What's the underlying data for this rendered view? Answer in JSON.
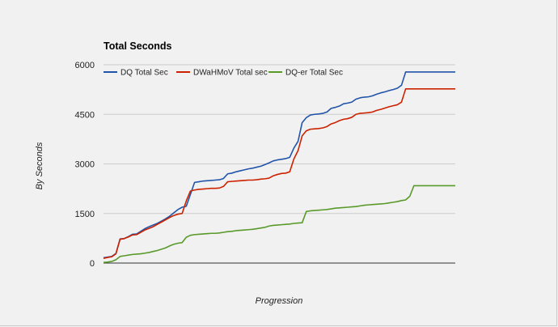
{
  "chart_data": {
    "type": "line",
    "title": "Total Seconds",
    "xlabel": "Progression",
    "ylabel": "By Seconds",
    "ylim": [
      0,
      6000
    ],
    "yticks": [
      "0",
      "1500",
      "3000",
      "4500",
      "6000"
    ],
    "ytick_values": [
      0,
      1500,
      3000,
      4500,
      6000
    ],
    "grid": true,
    "legend_position": "top",
    "x": [
      1,
      2,
      3,
      4,
      5,
      6,
      7,
      8,
      9,
      10,
      11,
      12,
      13,
      14,
      15,
      16,
      17,
      18,
      19,
      20,
      21,
      22,
      23,
      24,
      25,
      26,
      27,
      28,
      29,
      30,
      31,
      32,
      33,
      34,
      35,
      36,
      37,
      38,
      39,
      40,
      41,
      42,
      43,
      44,
      45,
      46,
      47,
      48,
      49,
      50,
      51,
      52,
      53,
      54,
      55,
      56,
      57,
      58,
      59,
      60,
      61,
      62,
      63,
      64,
      65,
      66,
      67,
      68,
      69,
      70,
      71,
      72,
      73,
      74,
      75,
      76,
      77,
      78,
      79,
      80,
      81,
      82,
      83,
      84,
      85,
      86
    ],
    "series": [
      {
        "name": "DQ Total Sec",
        "color": "#2255aa",
        "values": [
          160,
          180,
          200,
          290,
          730,
          740,
          800,
          870,
          880,
          960,
          1040,
          1100,
          1150,
          1200,
          1270,
          1340,
          1420,
          1520,
          1620,
          1690,
          1720,
          2080,
          2440,
          2460,
          2480,
          2490,
          2500,
          2510,
          2520,
          2560,
          2700,
          2720,
          2760,
          2790,
          2820,
          2850,
          2870,
          2900,
          2930,
          2980,
          3030,
          3090,
          3120,
          3140,
          3160,
          3200,
          3480,
          3680,
          4250,
          4400,
          4480,
          4500,
          4510,
          4530,
          4570,
          4680,
          4710,
          4750,
          4820,
          4840,
          4870,
          4960,
          5000,
          5020,
          5030,
          5060,
          5110,
          5150,
          5180,
          5220,
          5250,
          5290,
          5380,
          5780,
          5780,
          5780,
          5780,
          5780,
          5780,
          5780,
          5780,
          5780,
          5780,
          5780,
          5780,
          5780
        ]
      },
      {
        "name": "DWaHMoV Total sec",
        "color": "#cc2200",
        "values": [
          140,
          170,
          190,
          280,
          720,
          740,
          790,
          850,
          860,
          930,
          1000,
          1050,
          1100,
          1170,
          1240,
          1310,
          1380,
          1440,
          1480,
          1500,
          1880,
          2180,
          2210,
          2230,
          2240,
          2250,
          2260,
          2260,
          2270,
          2320,
          2460,
          2470,
          2480,
          2490,
          2500,
          2510,
          2510,
          2520,
          2540,
          2550,
          2570,
          2640,
          2680,
          2710,
          2720,
          2760,
          3150,
          3400,
          3850,
          4000,
          4050,
          4060,
          4070,
          4090,
          4130,
          4210,
          4250,
          4310,
          4350,
          4370,
          4410,
          4500,
          4530,
          4540,
          4550,
          4570,
          4620,
          4650,
          4690,
          4730,
          4760,
          4790,
          4870,
          5270,
          5270,
          5270,
          5270,
          5270,
          5270,
          5270,
          5270,
          5270,
          5270,
          5270,
          5270,
          5270
        ]
      },
      {
        "name": "DQ-er Total Sec",
        "color": "#5a9a2a",
        "values": [
          20,
          30,
          50,
          100,
          200,
          220,
          240,
          260,
          270,
          280,
          300,
          320,
          350,
          380,
          420,
          460,
          520,
          570,
          600,
          620,
          780,
          840,
          860,
          870,
          880,
          890,
          900,
          900,
          910,
          930,
          950,
          960,
          980,
          990,
          1000,
          1010,
          1020,
          1040,
          1060,
          1080,
          1120,
          1140,
          1150,
          1160,
          1170,
          1180,
          1200,
          1210,
          1220,
          1560,
          1580,
          1590,
          1600,
          1610,
          1620,
          1640,
          1660,
          1670,
          1680,
          1690,
          1700,
          1710,
          1730,
          1750,
          1760,
          1770,
          1780,
          1790,
          1800,
          1820,
          1840,
          1860,
          1890,
          1910,
          2020,
          2340,
          2340,
          2340,
          2340,
          2340,
          2340,
          2340,
          2340,
          2340,
          2340,
          2340
        ]
      }
    ]
  }
}
